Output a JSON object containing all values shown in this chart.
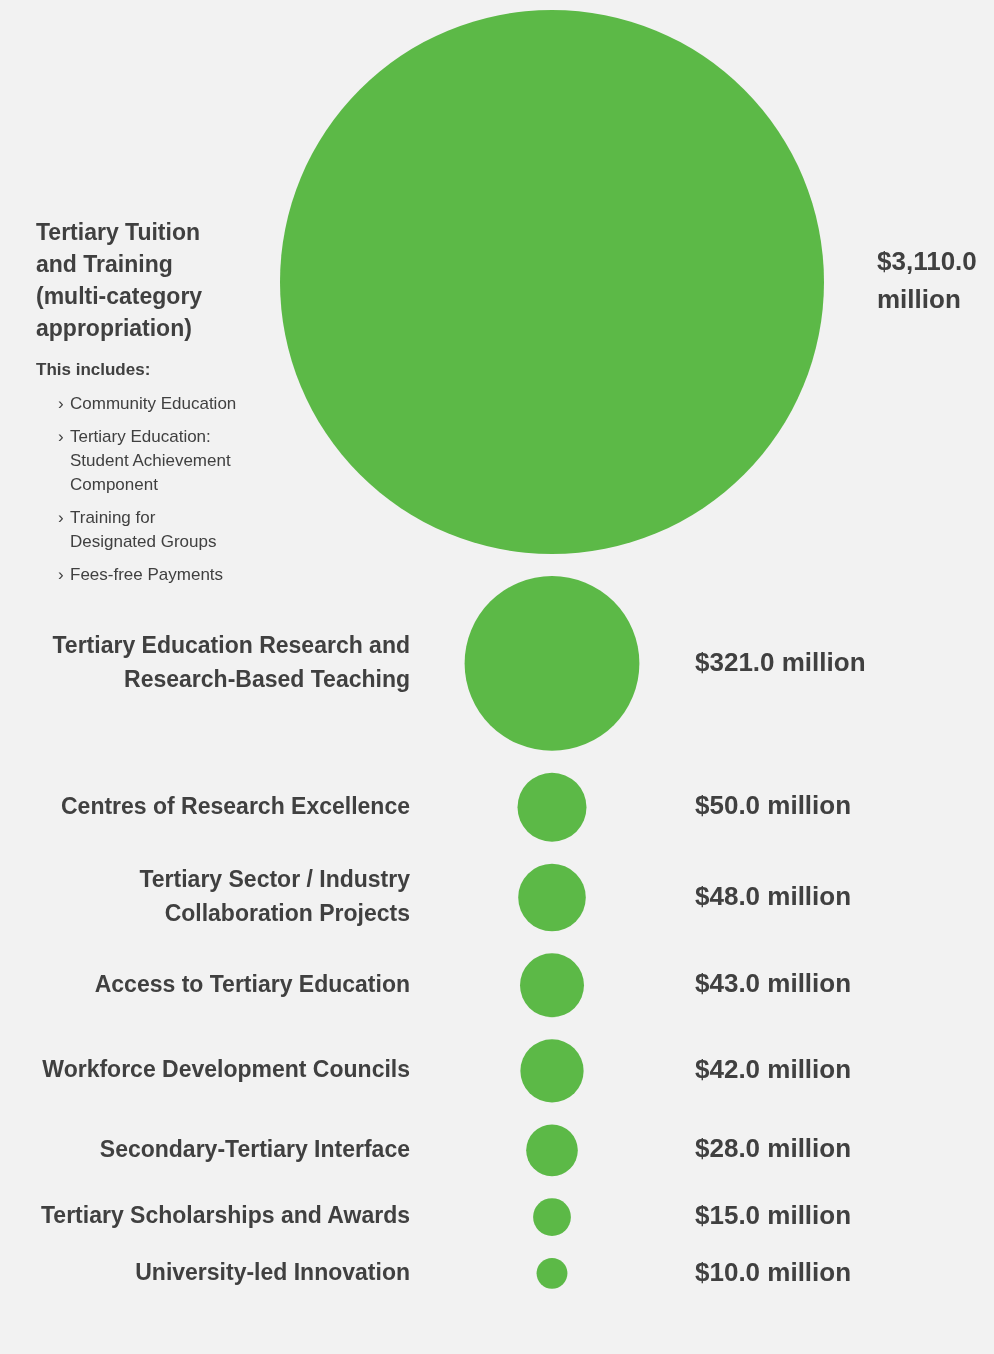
{
  "chart_data": {
    "type": "other",
    "categories": [
      "Tertiary Tuition and Training (multi-category appropriation)",
      "Tertiary Education Research and Research-Based Teaching",
      "Centres of Research Excellence",
      "Tertiary Sector / Industry Collaboration Projects",
      "Access to Tertiary Education",
      "Workforce Development Councils",
      "Secondary-Tertiary Interface",
      "Tertiary Scholarships and Awards",
      "University-led Innovation"
    ],
    "values": [
      3110.0,
      321.0,
      50.0,
      48.0,
      43.0,
      42.0,
      28.0,
      15.0,
      10.0
    ],
    "value_labels": [
      "$3,110.0 million",
      "$321.0 million",
      "$50.0 million",
      "$48.0 million",
      "$43.0 million",
      "$42.0 million",
      "$28.0 million",
      "$15.0 million",
      "$10.0 million"
    ],
    "color": "#5cb947",
    "annotations": [
      "This includes:",
      "› Community Education",
      "› Tertiary Education: Student Achievement Component",
      "› Training for Designated Groups",
      "› Fees-free Payments"
    ]
  }
}
